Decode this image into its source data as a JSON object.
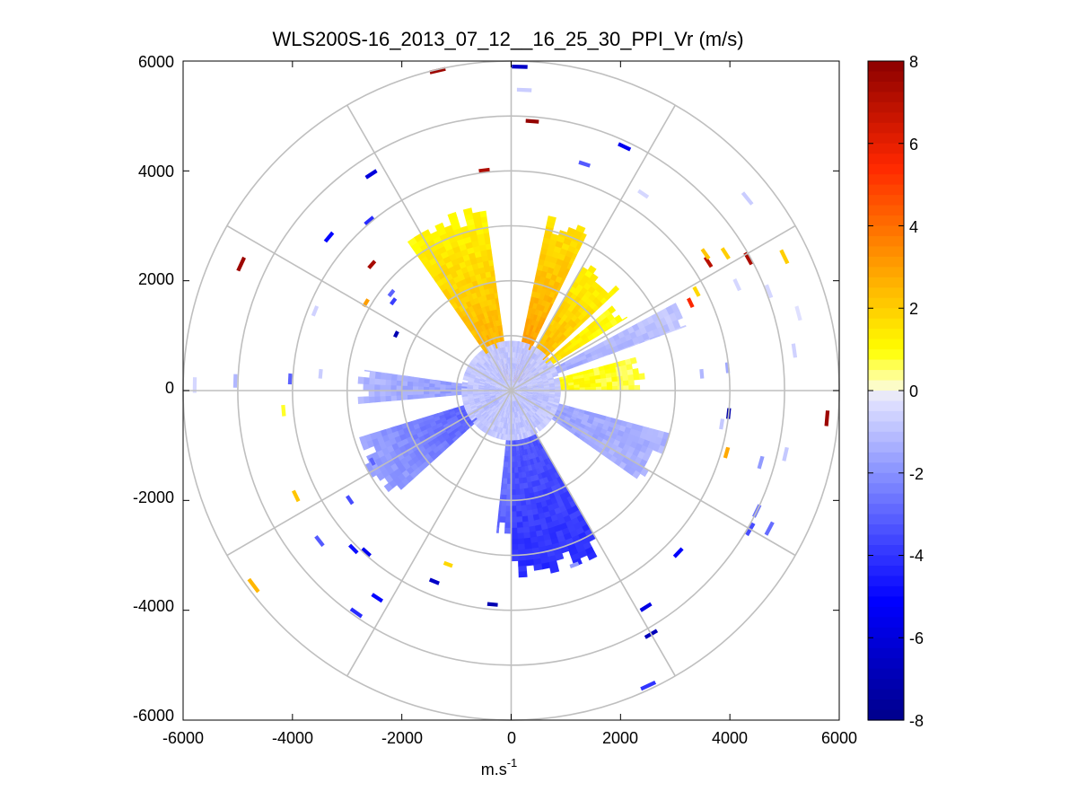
{
  "chart_data": {
    "type": "polar_ppi_scatter",
    "title": "WLS200S-16_2013_07_12__16_25_30_PPI_Vr (m/s)",
    "xlabel_base": "m.s",
    "xlabel_exponent": "-1",
    "ylabel": "",
    "xlim": [
      -6000,
      6000
    ],
    "ylim": [
      -6000,
      6000
    ],
    "x_ticks": [
      -6000,
      -4000,
      -2000,
      0,
      2000,
      4000,
      6000
    ],
    "y_ticks": [
      6000,
      4000,
      2000,
      0,
      -2000,
      -4000,
      -6000
    ],
    "x_tick_labels": [
      "-6000",
      "-4000",
      "-2000",
      "0",
      "2000",
      "4000",
      "6000"
    ],
    "y_tick_labels": [
      "6000",
      "4000",
      "2000",
      "0",
      "-2000",
      "-4000",
      "-6000"
    ],
    "polar_grid": {
      "range_rings_m": [
        1000,
        2000,
        3000,
        4000,
        5000,
        6000
      ],
      "spoke_angles_deg": [
        0,
        30,
        60,
        90,
        120,
        150,
        180,
        210,
        240,
        270,
        300,
        330
      ]
    },
    "colorbar": {
      "min": -8,
      "max": 8,
      "ticks": [
        8,
        6,
        4,
        2,
        0,
        -2,
        -4,
        -6,
        -8
      ],
      "tick_labels": [
        "8",
        "6",
        "4",
        "2",
        "0",
        "-2",
        "-4",
        "-6",
        "-8"
      ],
      "colormap": [
        "#00008b",
        "#0000ff",
        "#8c96ff",
        "#e6e6ff",
        "#ffffc0",
        "#ffff00",
        "#ffa500",
        "#ff2800",
        "#8b0000"
      ]
    },
    "sectors": [
      {
        "az_start": 12,
        "az_end": 26,
        "r_start": 150,
        "r_end": 3200,
        "vr_near": 3.5,
        "vr_far": 1.5
      },
      {
        "az_start": 30,
        "az_end": 47,
        "r_start": 200,
        "r_end": 2700,
        "vr_near": 3.0,
        "vr_far": 1.0
      },
      {
        "az_start": 50,
        "az_end": 58,
        "r_start": 300,
        "r_end": 2500,
        "vr_near": 2.0,
        "vr_far": 0.8
      },
      {
        "az_start": 62,
        "az_end": 70,
        "r_start": 800,
        "r_end": 3400,
        "vr_near": -1.5,
        "vr_far": -0.8
      },
      {
        "az_start": 75,
        "az_end": 90,
        "r_start": 150,
        "r_end": 2400,
        "vr_near": 1.2,
        "vr_far": 0.6
      },
      {
        "az_start": 105,
        "az_end": 125,
        "r_start": 300,
        "r_end": 3000,
        "vr_near": -1.8,
        "vr_far": -1.2
      },
      {
        "az_start": 150,
        "az_end": 180,
        "r_start": 200,
        "r_end": 3400,
        "vr_near": -3.0,
        "vr_far": -4.2
      },
      {
        "az_start": 180,
        "az_end": 186,
        "r_start": 300,
        "r_end": 2600,
        "vr_near": -2.5,
        "vr_far": -3.0
      },
      {
        "az_start": 228,
        "az_end": 253,
        "r_start": 300,
        "r_end": 3000,
        "vr_near": -3.5,
        "vr_far": -1.5
      },
      {
        "az_start": 265,
        "az_end": 278,
        "r_start": 200,
        "r_end": 2800,
        "vr_near": -2.0,
        "vr_far": -1.2
      },
      {
        "az_start": 325,
        "az_end": 352,
        "r_start": 200,
        "r_end": 3400,
        "vr_near": 3.0,
        "vr_far": 1.0
      },
      {
        "az_start": 0,
        "az_end": 360,
        "r_start": 0,
        "r_end": 900,
        "vr_near": -1.0,
        "vr_far": -0.8
      }
    ],
    "returns": [
      {
        "az": 1.5,
        "r": 5900,
        "vr": -6.5
      },
      {
        "az": 2.5,
        "r": 5480,
        "vr": -0.7
      },
      {
        "az": 4.5,
        "r": 4920,
        "vr": 7.8
      },
      {
        "az": 25,
        "r": 4900,
        "vr": -5.5
      },
      {
        "az": 18,
        "r": 4340,
        "vr": -3.2
      },
      {
        "az": 34,
        "r": 4320,
        "vr": -0.5
      },
      {
        "az": 51,
        "r": 5560,
        "vr": -0.7
      },
      {
        "az": 57,
        "r": 4300,
        "vr": 7.0
      },
      {
        "az": 55,
        "r": 4340,
        "vr": 2.2
      },
      {
        "az": 57.5,
        "r": 4650,
        "vr": 2.0
      },
      {
        "az": 61,
        "r": 4960,
        "vr": 7.3
      },
      {
        "az": 64,
        "r": 5560,
        "vr": 2.0
      },
      {
        "az": 62,
        "r": 3840,
        "vr": 1.8
      },
      {
        "az": 64,
        "r": 3650,
        "vr": 5.5
      },
      {
        "az": 65,
        "r": 4560,
        "vr": -0.5
      },
      {
        "az": 69,
        "r": 5050,
        "vr": -0.5
      },
      {
        "az": 75,
        "r": 5440,
        "vr": -0.3
      },
      {
        "az": 82,
        "r": 5230,
        "vr": -0.6
      },
      {
        "az": 85,
        "r": 3500,
        "vr": -1.2
      },
      {
        "az": 84,
        "r": 3980,
        "vr": -1.5
      },
      {
        "az": 95,
        "r": 5800,
        "vr": 7.6
      },
      {
        "az": 96,
        "r": 4000,
        "vr": -7.2
      },
      {
        "az": 99,
        "r": 3900,
        "vr": -0.8
      },
      {
        "az": 106,
        "r": 4100,
        "vr": 2.8
      },
      {
        "az": 106,
        "r": 4750,
        "vr": -1.8
      },
      {
        "az": 103,
        "r": 5150,
        "vr": -0.8
      },
      {
        "az": 116,
        "r": 5000,
        "vr": -2.6
      },
      {
        "az": 118,
        "r": 5350,
        "vr": -2.8
      },
      {
        "az": 120,
        "r": 5050,
        "vr": -3.5
      },
      {
        "az": 134,
        "r": 4250,
        "vr": -5.2
      },
      {
        "az": 148,
        "r": 4650,
        "vr": -5.8
      },
      {
        "az": 150,
        "r": 5120,
        "vr": -6.8
      },
      {
        "az": 155,
        "r": 5930,
        "vr": -4.0
      },
      {
        "az": 160,
        "r": 3380,
        "vr": -1.8
      },
      {
        "az": 185,
        "r": 3910,
        "vr": -7.0
      },
      {
        "az": 200,
        "r": 3370,
        "vr": 1.8
      },
      {
        "az": 202,
        "r": 3750,
        "vr": -6.5
      },
      {
        "az": 213,
        "r": 4500,
        "vr": -5.0
      },
      {
        "az": 215,
        "r": 4940,
        "vr": -4.2
      },
      {
        "az": 222,
        "r": 3960,
        "vr": -5.5
      },
      {
        "az": 225,
        "r": 4080,
        "vr": -4.8
      },
      {
        "az": 232,
        "r": 4450,
        "vr": -3.2
      },
      {
        "az": 233,
        "r": 5900,
        "vr": 2.5
      },
      {
        "az": 236,
        "r": 3560,
        "vr": -3.5
      },
      {
        "az": 243,
        "r": 2850,
        "vr": -3.0
      },
      {
        "az": 244,
        "r": 4380,
        "vr": 2.2
      },
      {
        "az": 265,
        "r": 4180,
        "vr": 0.8
      },
      {
        "az": 275,
        "r": 3500,
        "vr": -0.7
      },
      {
        "az": 273,
        "r": 4050,
        "vr": -3.0
      },
      {
        "az": 272,
        "r": 5050,
        "vr": -1.2
      },
      {
        "az": 271,
        "r": 5790,
        "vr": -0.5
      },
      {
        "az": 292,
        "r": 3870,
        "vr": -0.6
      },
      {
        "az": 296,
        "r": 2340,
        "vr": -7.0
      },
      {
        "az": 295,
        "r": 5450,
        "vr": 7.6
      },
      {
        "az": 301,
        "r": 3100,
        "vr": 3.0
      },
      {
        "az": 307,
        "r": 2700,
        "vr": -3.8
      },
      {
        "az": 309,
        "r": 2820,
        "vr": -3.0
      },
      {
        "az": 312,
        "r": 3430,
        "vr": 7.4
      },
      {
        "az": 310,
        "r": 4350,
        "vr": -5.0
      },
      {
        "az": 320,
        "r": 4040,
        "vr": -4.2
      },
      {
        "az": 327,
        "r": 4700,
        "vr": -6.0
      },
      {
        "az": 347,
        "r": 5980,
        "vr": 7.6
      },
      {
        "az": 353,
        "r": 4040,
        "vr": 7.2
      }
    ]
  }
}
